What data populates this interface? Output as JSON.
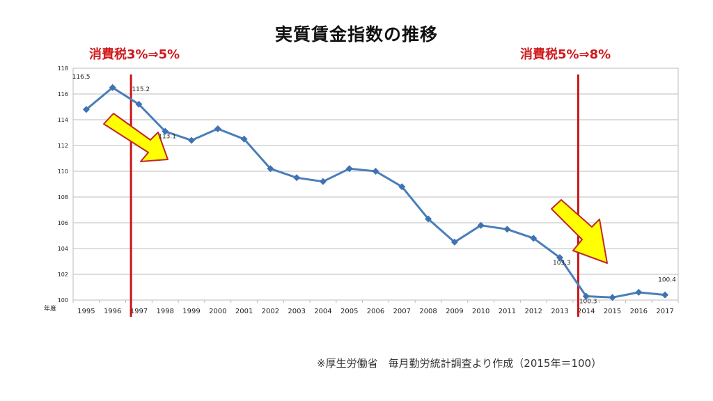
{
  "page": {
    "title": "実質賃金指数の推移",
    "source": "※厚生労働省　毎月勤労統計調査より作成（2015年＝100）"
  },
  "annotations": {
    "tax1_label": "消費税3%⇒5%",
    "tax2_label": "消費税5%⇒8%",
    "tax1_year_position": 1996.7,
    "tax2_year_position": 2013.7
  },
  "colors": {
    "series": "#4a7ebb",
    "marker": "#3f72b0",
    "tax_line": "#cc1419",
    "tax_text": "#d0191c",
    "arrow_fill": "#ffff00",
    "arrow_stroke": "#c0282d",
    "grid": "#bcbcbc"
  },
  "chart_data": {
    "type": "line",
    "title": "実質賃金指数の推移",
    "xlabel": "年度",
    "ylabel": "",
    "ylim": [
      100,
      118
    ],
    "yticks": [
      100,
      102,
      104,
      106,
      108,
      110,
      112,
      114,
      116,
      118
    ],
    "grid": true,
    "categories": [
      "1995",
      "1996",
      "1997",
      "1998",
      "1999",
      "2000",
      "2001",
      "2002",
      "2003",
      "2004",
      "2005",
      "2006",
      "2007",
      "2008",
      "2009",
      "2010",
      "2011",
      "2012",
      "2013",
      "2014",
      "2015",
      "2016",
      "2017"
    ],
    "series": [
      {
        "name": "実質賃金指数",
        "values": [
          114.8,
          116.5,
          115.2,
          113.1,
          112.4,
          113.3,
          112.5,
          110.2,
          109.5,
          109.2,
          110.2,
          110.0,
          108.8,
          106.3,
          104.5,
          105.8,
          105.5,
          104.8,
          103.3,
          100.3,
          100.2,
          100.6,
          100.4
        ]
      }
    ],
    "data_labels": [
      {
        "index": 1,
        "text": "116.5",
        "position": "left-above"
      },
      {
        "index": 2,
        "text": "115.2",
        "position": "above"
      },
      {
        "index": 3,
        "text": "113.1",
        "position": "upper-left"
      },
      {
        "index": 18,
        "text": "103.3",
        "position": "upper-left"
      },
      {
        "index": 19,
        "text": "100.3",
        "position": "upper-left"
      },
      {
        "index": 22,
        "text": "100.4",
        "position": "above"
      }
    ]
  }
}
